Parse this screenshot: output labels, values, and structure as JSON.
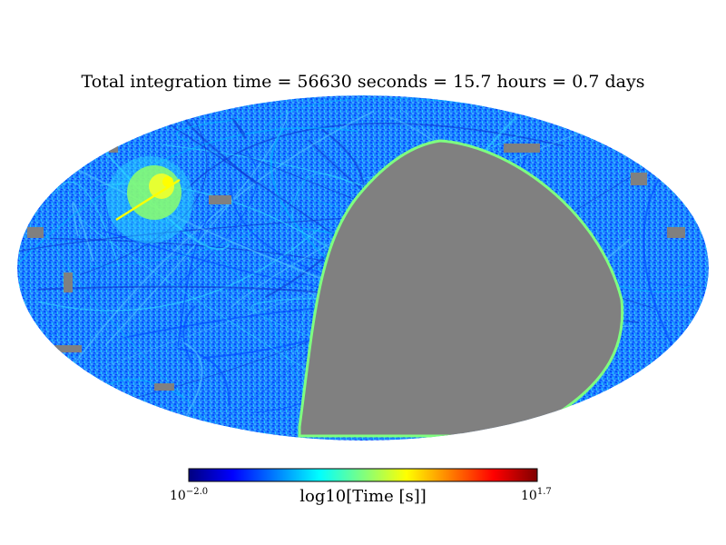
{
  "chart_data": {
    "type": "heatmap",
    "projection": "mollweide",
    "title": "Total integration time = 56630 seconds = 15.7 hours = 0.7 days",
    "colorbar": {
      "label": "log10[Time [s]]",
      "min_label_base": "10",
      "min_label_exp": "−2.0",
      "max_label_base": "10",
      "max_label_exp": "1.7",
      "range": [
        -2.0,
        1.7
      ],
      "colormap": "jet",
      "stops": [
        "#00007f",
        "#0000ff",
        "#007fff",
        "#00ffff",
        "#7fff7f",
        "#ffff00",
        "#ff7f00",
        "#ff0000",
        "#7f0000"
      ]
    },
    "colors": {
      "unobserved": "#808080",
      "typical_coverage": "#1f7fff",
      "dense_cluster": "#ffff00",
      "scan_edge": "#7fff7f"
    },
    "regions": [
      {
        "name": "unobserved region",
        "value": null
      },
      {
        "name": "hotspot",
        "lon": -120,
        "lat": 40,
        "value": 1.0
      },
      {
        "name": "scan edge",
        "value": 0.0
      }
    ],
    "grid": false,
    "legend": "bottom-center"
  }
}
